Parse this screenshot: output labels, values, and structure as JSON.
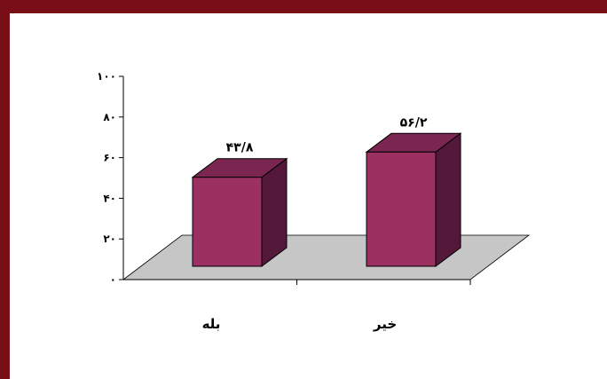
{
  "colors": {
    "frame": "#7a0e16",
    "floor": "#c6c6c6",
    "bar_front": "#9c3060",
    "bar_top": "#7a2650",
    "bar_side": "#54183a",
    "axis": "#000000"
  },
  "chart_data": {
    "type": "bar",
    "style": "3d-column",
    "categories": [
      "بله",
      "خير"
    ],
    "values": [
      43.8,
      56.2
    ],
    "data_labels": [
      "۴۳/۸",
      "۵۶/۲"
    ],
    "ylim": [
      0,
      100
    ],
    "y_ticks": [
      0,
      20,
      40,
      60,
      80,
      100
    ],
    "y_tick_labels": [
      "۰",
      "۲۰",
      "۴۰",
      "۶۰",
      "۸۰",
      "۱۰۰"
    ],
    "grid": false,
    "legend": "none",
    "title": "",
    "xlabel": "",
    "ylabel": ""
  }
}
